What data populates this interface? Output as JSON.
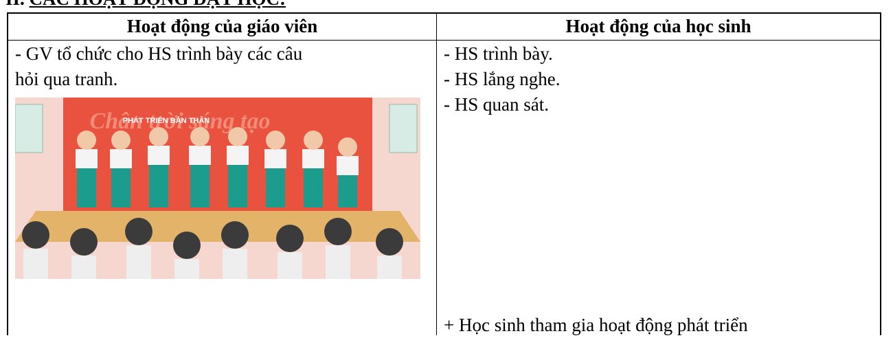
{
  "section": {
    "number": "II.",
    "title": "CÁC HOẠT ĐỘNG DẠY HỌC:"
  },
  "table": {
    "headers": [
      "Hoạt động của giáo viên",
      "Hoạt động của học sinh"
    ],
    "teacher": [
      "- GV tổ chức cho HS trình bày các câu",
      "hỏi qua tranh."
    ],
    "students": [
      "- HS trình bày.",
      "- HS lắng nghe.",
      "- HS quan sát."
    ],
    "image": {
      "banner": "Chân trời sáng tạo",
      "sign": "PHÁT TRIỂN BẢN THÂN"
    },
    "footer": "+ Học sinh tham gia hoạt động phát triển"
  }
}
